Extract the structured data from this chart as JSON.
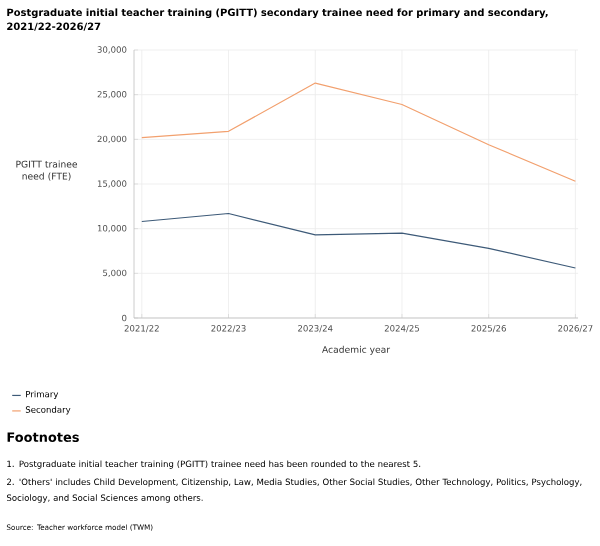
{
  "chart_data": {
    "type": "line",
    "title": "Postgraduate initial teacher training (PGITT) secondary trainee need for primary and secondary, 2021/22-2026/27",
    "xlabel": "Academic year",
    "ylabel": "PGITT trainee need (FTE)",
    "categories": [
      "2021/22",
      "2022/23",
      "2023/24",
      "2024/25",
      "2025/26",
      "2026/27"
    ],
    "series": [
      {
        "name": "Primary",
        "color": "#3d5a78",
        "values": [
          10800,
          11700,
          9300,
          9500,
          7800,
          5600
        ]
      },
      {
        "name": "Secondary",
        "color": "#f2a06e",
        "values": [
          20200,
          20900,
          26300,
          23900,
          19400,
          15300
        ]
      }
    ],
    "ylim": [
      0,
      30000
    ],
    "yticks": [
      {
        "value": 0,
        "label": "0"
      },
      {
        "value": 5000,
        "label": "5,000"
      },
      {
        "value": 10000,
        "label": "10,000"
      },
      {
        "value": 15000,
        "label": "15,000"
      },
      {
        "value": 20000,
        "label": "20,000"
      },
      {
        "value": 25000,
        "label": "25,000"
      },
      {
        "value": 30000,
        "label": "30,000"
      }
    ],
    "grid": true,
    "legend": "bottom left",
    "marker": "none",
    "line_style": "solid",
    "annotations": [
      "Footnotes",
      "1. Postgraduate initial teacher training (PGITT) trainee need has been rounded to the nearest 5.",
      "2. 'Others' includes Child Development, Citizenship, Law, Media Studies, Other Social Studies, Other Technology, Politics, Psychology, Sociology, and Social Sciences among others.",
      "Source: Teacher workforce model (TWM)"
    ]
  }
}
